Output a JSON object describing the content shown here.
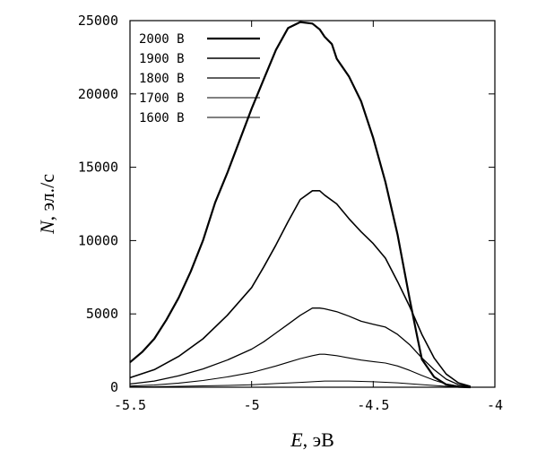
{
  "chart_data": {
    "type": "line",
    "title": "",
    "xlabel_var": "E",
    "xlabel_unit": ", эВ",
    "ylabel_var": "N",
    "ylabel_unit": ", эл./с",
    "xlim": [
      -5.5,
      -4
    ],
    "ylim": [
      0,
      25000
    ],
    "xticks": [
      -5.5,
      -5,
      -4.5,
      -4
    ],
    "xtick_labels": [
      "-5.5",
      "-5",
      "-4.5",
      "-4"
    ],
    "yticks": [
      0,
      5000,
      10000,
      15000,
      20000,
      25000
    ],
    "ytick_labels": [
      "0",
      "5000",
      "10000",
      "15000",
      "20000",
      "25000"
    ],
    "grid": false,
    "legend_position": "top-left",
    "series": [
      {
        "name": "2000 В",
        "stroke_width": 2.2,
        "x": [
          -5.5,
          -5.45,
          -5.4,
          -5.35,
          -5.3,
          -5.25,
          -5.2,
          -5.15,
          -5.1,
          -5.05,
          -5.0,
          -4.95,
          -4.9,
          -4.85,
          -4.8,
          -4.75,
          -4.72,
          -4.7,
          -4.67,
          -4.65,
          -4.6,
          -4.55,
          -4.5,
          -4.45,
          -4.4,
          -4.35,
          -4.32,
          -4.3,
          -4.25,
          -4.2,
          -4.15,
          -4.12,
          -4.1
        ],
        "values": [
          1700,
          2400,
          3300,
          4600,
          6100,
          7900,
          10000,
          12600,
          14600,
          16800,
          19000,
          21000,
          23000,
          24500,
          24900,
          24800,
          24400,
          23900,
          23400,
          22400,
          21200,
          19500,
          17000,
          14000,
          10400,
          6000,
          3500,
          1900,
          700,
          180,
          30,
          5,
          0
        ]
      },
      {
        "name": "1900 В",
        "stroke_width": 1.6,
        "x": [
          -5.5,
          -5.4,
          -5.3,
          -5.2,
          -5.1,
          -5.0,
          -4.95,
          -4.9,
          -4.85,
          -4.8,
          -4.75,
          -4.72,
          -4.7,
          -4.65,
          -4.6,
          -4.55,
          -4.5,
          -4.45,
          -4.4,
          -4.35,
          -4.3,
          -4.25,
          -4.2,
          -4.15,
          -4.1
        ],
        "values": [
          650,
          1200,
          2100,
          3300,
          4900,
          6800,
          8200,
          9700,
          11300,
          12800,
          13400,
          13400,
          13100,
          12500,
          11500,
          10600,
          9800,
          8800,
          7200,
          5500,
          3600,
          2000,
          900,
          300,
          60
        ]
      },
      {
        "name": "1800 В",
        "stroke_width": 1.3,
        "x": [
          -5.5,
          -5.4,
          -5.3,
          -5.2,
          -5.1,
          -5.0,
          -4.95,
          -4.9,
          -4.85,
          -4.8,
          -4.75,
          -4.72,
          -4.7,
          -4.65,
          -4.6,
          -4.55,
          -4.5,
          -4.45,
          -4.4,
          -4.35,
          -4.3,
          -4.25,
          -4.2,
          -4.15,
          -4.1
        ],
        "values": [
          220,
          420,
          780,
          1250,
          1850,
          2600,
          3100,
          3700,
          4300,
          4900,
          5400,
          5400,
          5350,
          5150,
          4850,
          4500,
          4300,
          4100,
          3600,
          2900,
          2000,
          1200,
          550,
          180,
          40
        ]
      },
      {
        "name": "1700 В",
        "stroke_width": 1.1,
        "x": [
          -5.5,
          -5.4,
          -5.3,
          -5.2,
          -5.1,
          -5.0,
          -4.9,
          -4.85,
          -4.8,
          -4.75,
          -4.72,
          -4.7,
          -4.65,
          -4.6,
          -4.55,
          -4.5,
          -4.45,
          -4.4,
          -4.35,
          -4.3,
          -4.25,
          -4.2,
          -4.15,
          -4.1
        ],
        "values": [
          80,
          150,
          280,
          460,
          700,
          1000,
          1450,
          1700,
          1950,
          2150,
          2250,
          2250,
          2150,
          2000,
          1850,
          1750,
          1650,
          1450,
          1150,
          800,
          480,
          220,
          80,
          15
        ]
      },
      {
        "name": "1600 В",
        "stroke_width": 1.0,
        "x": [
          -5.5,
          -5.3,
          -5.1,
          -5.0,
          -4.9,
          -4.8,
          -4.7,
          -4.6,
          -4.5,
          -4.4,
          -4.3,
          -4.2,
          -4.1
        ],
        "values": [
          20,
          60,
          120,
          170,
          250,
          330,
          420,
          420,
          370,
          300,
          180,
          60,
          10
        ]
      }
    ]
  }
}
